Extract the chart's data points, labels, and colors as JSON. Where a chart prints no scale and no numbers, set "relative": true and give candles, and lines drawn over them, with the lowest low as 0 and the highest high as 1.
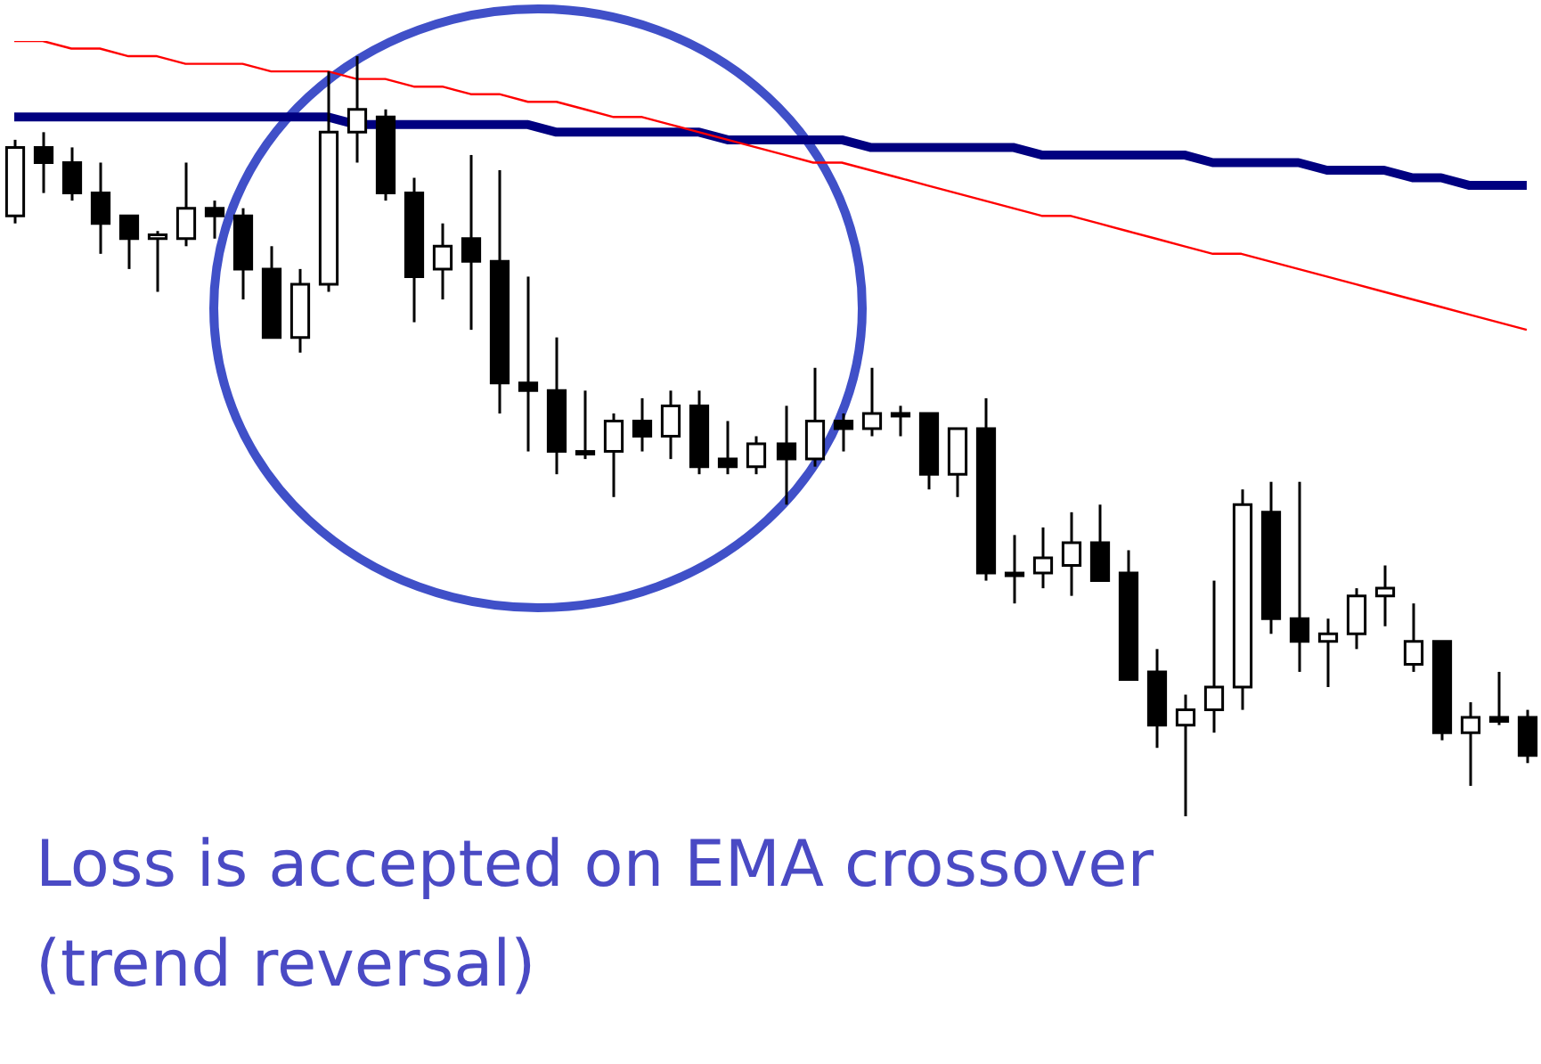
{
  "chart_data": {
    "type": "candlestick",
    "relative": true,
    "categories": [
      null,
      null,
      null,
      null,
      null,
      null,
      null,
      null,
      null,
      null,
      null,
      null,
      null,
      null,
      null,
      null,
      null,
      null,
      null,
      null,
      null,
      null,
      null,
      null,
      null,
      null,
      null,
      null,
      null,
      null,
      null,
      null,
      null,
      null,
      null,
      null,
      null,
      null,
      null,
      null,
      null,
      null,
      null,
      null,
      null,
      null,
      null,
      null,
      null,
      null,
      null,
      null,
      null,
      null
    ],
    "ohlc": [
      [
        0.79,
        0.89,
        0.78,
        0.88
      ],
      [
        0.88,
        0.9,
        0.82,
        0.86
      ],
      [
        0.86,
        0.88,
        0.81,
        0.82
      ],
      [
        0.82,
        0.86,
        0.74,
        0.78
      ],
      [
        0.79,
        0.79,
        0.72,
        0.76
      ],
      [
        0.76,
        0.77,
        0.69,
        0.765
      ],
      [
        0.76,
        0.86,
        0.75,
        0.8
      ],
      [
        0.8,
        0.81,
        0.76,
        0.79
      ],
      [
        0.79,
        0.8,
        0.68,
        0.72
      ],
      [
        0.72,
        0.75,
        0.63,
        0.63
      ],
      [
        0.63,
        0.72,
        0.61,
        0.7
      ],
      [
        0.7,
        0.98,
        0.69,
        0.9
      ],
      [
        0.9,
        1,
        0.86,
        0.93
      ],
      [
        0.92,
        0.93,
        0.81,
        0.82
      ],
      [
        0.82,
        0.84,
        0.65,
        0.71
      ],
      [
        0.72,
        0.78,
        0.68,
        0.75
      ],
      [
        0.76,
        0.87,
        0.64,
        0.73
      ],
      [
        0.73,
        0.85,
        0.53,
        0.57
      ],
      [
        0.57,
        0.71,
        0.48,
        0.56
      ],
      [
        0.56,
        0.63,
        0.45,
        0.48
      ],
      [
        0.48,
        0.56,
        0.47,
        0.48
      ],
      [
        0.48,
        0.53,
        0.42,
        0.52
      ],
      [
        0.52,
        0.55,
        0.48,
        0.5
      ],
      [
        0.5,
        0.56,
        0.47,
        0.54
      ],
      [
        0.54,
        0.56,
        0.45,
        0.46
      ],
      [
        0.47,
        0.52,
        0.45,
        0.46
      ],
      [
        0.46,
        0.5,
        0.45,
        0.49
      ],
      [
        0.49,
        0.54,
        0.41,
        0.47
      ],
      [
        0.47,
        0.59,
        0.46,
        0.52
      ],
      [
        0.52,
        0.53,
        0.48,
        0.51
      ],
      [
        0.51,
        0.59,
        0.5,
        0.53
      ],
      [
        0.53,
        0.54,
        0.5,
        0.53
      ],
      [
        0.53,
        0.53,
        0.43,
        0.45
      ],
      [
        0.45,
        0.51,
        0.42,
        0.51
      ],
      [
        0.51,
        0.55,
        0.31,
        0.32
      ],
      [
        0.32,
        0.37,
        0.28,
        0.32
      ],
      [
        0.32,
        0.38,
        0.3,
        0.34
      ],
      [
        0.33,
        0.4,
        0.29,
        0.36
      ],
      [
        0.36,
        0.41,
        0.31,
        0.31
      ],
      [
        0.32,
        0.35,
        0.18,
        0.18
      ],
      [
        0.19,
        0.22,
        0.09,
        0.12
      ],
      [
        0.12,
        0.16,
        0,
        0.14
      ],
      [
        0.14,
        0.31,
        0.11,
        0.17
      ],
      [
        0.17,
        0.43,
        0.14,
        0.41
      ],
      [
        0.4,
        0.44,
        0.24,
        0.26
      ],
      [
        0.26,
        0.44,
        0.19,
        0.23
      ],
      [
        0.23,
        0.26,
        0.17,
        0.24
      ],
      [
        0.24,
        0.3,
        0.22,
        0.29
      ],
      [
        0.29,
        0.33,
        0.25,
        0.3
      ],
      [
        0.2,
        0.28,
        0.19,
        0.23
      ],
      [
        0.23,
        0.23,
        0.1,
        0.11
      ],
      [
        0.11,
        0.15,
        0.04,
        0.13
      ],
      [
        0.13,
        0.19,
        0.12,
        0.125
      ],
      [
        0.13,
        0.14,
        0.07,
        0.08
      ]
    ],
    "series": [
      {
        "type": "line",
        "color": "#000080",
        "values": [
          0.92,
          0.92,
          0.92,
          0.92,
          0.92,
          0.92,
          0.92,
          0.92,
          0.92,
          0.92,
          0.92,
          0.92,
          0.91,
          null,
          0.91,
          0.91,
          0.91,
          0.91,
          0.91,
          0.9,
          0.9,
          0.9,
          0.9,
          0.9,
          0.9,
          0.89,
          0.89,
          0.89,
          0.89,
          0.89,
          0.88,
          0.88,
          0.88,
          0.88,
          0.88,
          0.88,
          0.87,
          0.87,
          0.87,
          0.87,
          0.87,
          0.87,
          0.86,
          0.86,
          0.86,
          0.86,
          0.85,
          0.85,
          0.85,
          0.84,
          0.84,
          0.83,
          0.83,
          0.83
        ]
      },
      {
        "type": "line",
        "color": "#ff0000",
        "values": [
          1.02,
          1.02,
          1.01,
          1.01,
          1.0,
          1.0,
          0.99,
          0.99,
          0.99,
          0.98,
          0.98,
          0.98,
          0.97,
          0.97,
          0.96,
          0.96,
          0.95,
          0.95,
          0.94,
          0.94,
          0.93,
          0.92,
          0.92,
          0.91,
          0.9,
          0.89,
          0.88,
          0.87,
          0.86,
          0.86,
          0.85,
          0.84,
          0.83,
          0.82,
          0.81,
          0.8,
          0.79,
          0.79,
          0.78,
          0.77,
          0.76,
          0.75,
          0.74,
          0.74,
          0.73,
          0.72,
          0.71,
          0.7,
          0.69,
          0.68,
          0.67,
          0.66,
          0.65,
          0.64
        ]
      }
    ],
    "annotations": [
      "Loss is accepted on EMA crossover",
      "(trend reversal)"
    ]
  }
}
